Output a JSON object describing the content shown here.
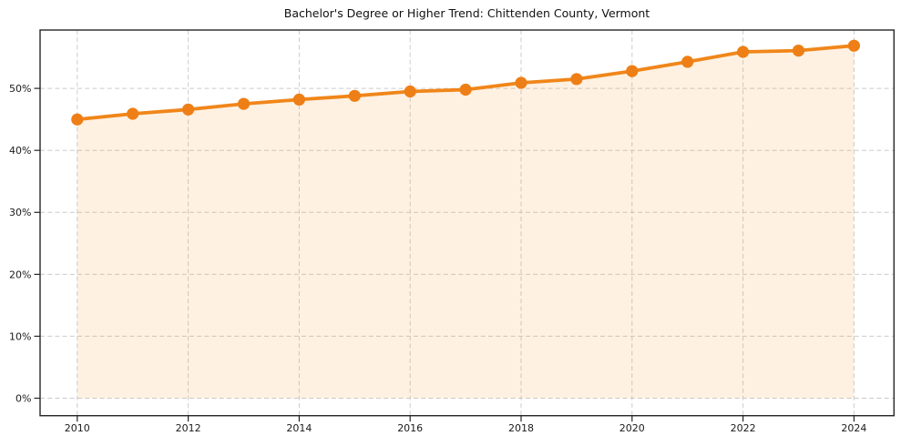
{
  "chart_data": {
    "type": "line",
    "title": "Bachelor's Degree or Higher Trend: Chittenden County, Vermont",
    "xlabel": "",
    "ylabel": "",
    "x": [
      2010,
      2011,
      2012,
      2013,
      2014,
      2015,
      2016,
      2017,
      2018,
      2019,
      2020,
      2021,
      2022,
      2023,
      2024
    ],
    "series": [
      {
        "name": "Bachelor's degree or higher (%)",
        "values": [
          45.0,
          45.9,
          46.6,
          47.5,
          48.2,
          48.8,
          49.5,
          49.8,
          50.9,
          51.5,
          52.8,
          54.3,
          55.9,
          56.1,
          56.9
        ]
      }
    ],
    "fill_baseline": 0,
    "x_tick_values": [
      2010,
      2012,
      2014,
      2016,
      2018,
      2020,
      2022,
      2024
    ],
    "x_tick_labels": [
      "2010",
      "2012",
      "2014",
      "2016",
      "2018",
      "2020",
      "2022",
      "2024"
    ],
    "y_tick_values": [
      0,
      10,
      20,
      30,
      40,
      50
    ],
    "y_tick_labels": [
      "0%",
      "10%",
      "20%",
      "30%",
      "40%",
      "50%"
    ],
    "xlim": [
      2009.33,
      2024.72
    ],
    "ylim": [
      -2.82,
      59.42
    ],
    "grid": true,
    "grid_style": "dashed",
    "legend": "none",
    "marker": "circle",
    "colors": {
      "line": "#f0861a",
      "marker": "#ee7f16",
      "fill": "rgba(245,146,30,0.13)",
      "grid": "#cccccc",
      "spine": "#262626",
      "tick": "#262626",
      "text": "#1a1a1a"
    }
  }
}
